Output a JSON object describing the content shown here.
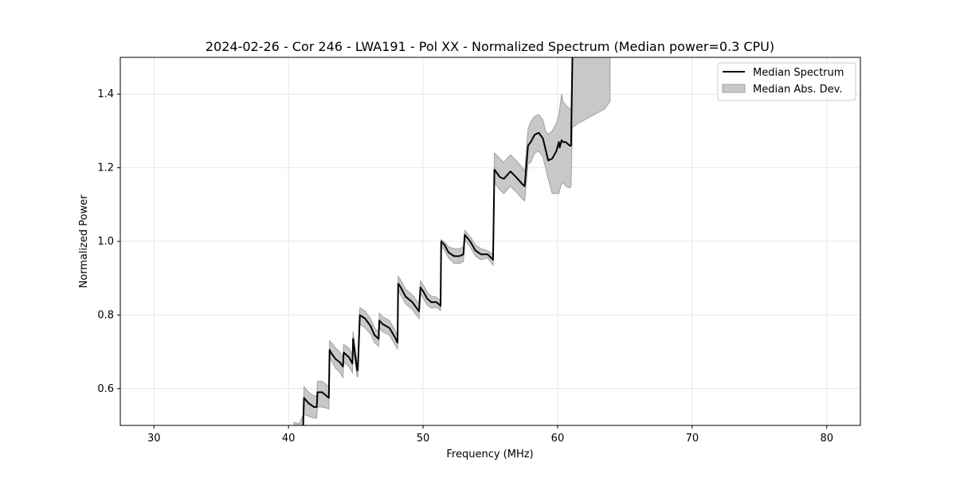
{
  "chart_data": {
    "type": "line",
    "title": "2024-02-26 - Cor 246 - LWA191 - Pol XX - Normalized Spectrum (Median power=0.3 CPU)",
    "xlabel": "Frequency (MHz)",
    "ylabel": "Normalized Power",
    "xlim": [
      27.5,
      82.5
    ],
    "ylim": [
      0.5,
      1.5
    ],
    "xticks": [
      30,
      40,
      50,
      60,
      70,
      80
    ],
    "yticks": [
      0.6,
      0.8,
      1.0,
      1.2,
      1.4
    ],
    "xtick_labels": [
      "30",
      "40",
      "50",
      "60",
      "70",
      "80"
    ],
    "ytick_labels": [
      "0.6",
      "0.8",
      "1.0",
      "1.2",
      "1.4"
    ],
    "grid": true,
    "legend_position": "top-right",
    "legend": [
      "Median Spectrum",
      "Median Abs. Dev."
    ],
    "colors": {
      "line": "#000000",
      "band": "#c8c8c8",
      "band_edge": "#a0a0a0",
      "grid": "#e6e6e6"
    },
    "series": [
      {
        "name": "Median Spectrum",
        "x": [
          41.1,
          41.15,
          41.5,
          41.9,
          42.1,
          42.15,
          42.5,
          43.0,
          43.05,
          43.2,
          43.5,
          43.8,
          44.05,
          44.1,
          44.5,
          44.75,
          44.8,
          45.1,
          45.15,
          45.3,
          45.7,
          46.1,
          46.4,
          46.7,
          46.75,
          47.0,
          47.5,
          47.9,
          48.1,
          48.15,
          48.3,
          48.7,
          49.2,
          49.7,
          49.8,
          50.0,
          50.3,
          50.6,
          51.0,
          51.3,
          51.35,
          51.6,
          51.9,
          52.3,
          52.7,
          53.0,
          53.1,
          53.5,
          53.9,
          54.3,
          54.8,
          55.2,
          55.3,
          55.7,
          56.0,
          56.5,
          56.9,
          57.4,
          57.55,
          57.8,
          58.0,
          58.3,
          58.6,
          58.9,
          59.1,
          59.3,
          59.6,
          59.9,
          60.1,
          60.15,
          60.3,
          60.4,
          60.6,
          60.9,
          61.0,
          61.1
        ],
        "y": [
          0.515,
          0.575,
          0.56,
          0.55,
          0.55,
          0.59,
          0.59,
          0.575,
          0.705,
          0.695,
          0.68,
          0.672,
          0.66,
          0.698,
          0.685,
          0.668,
          0.735,
          0.65,
          0.65,
          0.8,
          0.79,
          0.77,
          0.745,
          0.735,
          0.785,
          0.775,
          0.765,
          0.74,
          0.725,
          0.885,
          0.878,
          0.85,
          0.835,
          0.81,
          0.875,
          0.865,
          0.845,
          0.835,
          0.835,
          0.825,
          1.0,
          0.99,
          0.97,
          0.96,
          0.96,
          0.965,
          1.018,
          1.0,
          0.975,
          0.965,
          0.965,
          0.95,
          1.195,
          1.175,
          1.17,
          1.19,
          1.175,
          1.155,
          1.15,
          1.26,
          1.27,
          1.29,
          1.295,
          1.28,
          1.25,
          1.22,
          1.225,
          1.245,
          1.27,
          1.255,
          1.275,
          1.27,
          1.27,
          1.26,
          1.26,
          1.5
        ]
      },
      {
        "name": "Median Abs. Dev.",
        "x": [
          40.4,
          40.8,
          41.1,
          41.15,
          41.5,
          41.9,
          42.1,
          42.15,
          42.5,
          43.0,
          43.05,
          43.2,
          43.5,
          43.8,
          44.05,
          44.1,
          44.5,
          44.75,
          44.8,
          45.1,
          45.15,
          45.3,
          45.7,
          46.1,
          46.4,
          46.7,
          46.75,
          47.0,
          47.5,
          47.9,
          48.1,
          48.15,
          48.3,
          48.7,
          49.2,
          49.7,
          49.8,
          50.0,
          50.3,
          50.6,
          51.0,
          51.3,
          51.35,
          51.6,
          51.9,
          52.3,
          52.7,
          53.0,
          53.1,
          53.5,
          53.9,
          54.3,
          54.8,
          55.2,
          55.3,
          55.7,
          56.0,
          56.5,
          56.9,
          57.4,
          57.55,
          57.8,
          58.0,
          58.3,
          58.6,
          58.9,
          59.1,
          59.3,
          59.6,
          59.9,
          60.1,
          60.15,
          60.3,
          60.4,
          60.6,
          60.9,
          61.0,
          61.1,
          61.5,
          62.0,
          62.5,
          63.0,
          63.5,
          63.9
        ],
        "upper": [
          0.508,
          0.505,
          0.53,
          0.605,
          0.59,
          0.58,
          0.58,
          0.62,
          0.62,
          0.605,
          0.73,
          0.725,
          0.71,
          0.7,
          0.685,
          0.72,
          0.71,
          0.69,
          0.755,
          0.668,
          0.668,
          0.82,
          0.81,
          0.79,
          0.765,
          0.755,
          0.805,
          0.795,
          0.785,
          0.76,
          0.743,
          0.905,
          0.898,
          0.87,
          0.855,
          0.83,
          0.893,
          0.883,
          0.863,
          0.851,
          0.849,
          0.838,
          1.005,
          0.998,
          0.985,
          0.98,
          0.98,
          0.985,
          1.03,
          1.013,
          0.99,
          0.98,
          0.975,
          0.965,
          1.24,
          1.225,
          1.215,
          1.235,
          1.22,
          1.2,
          1.19,
          1.305,
          1.325,
          1.34,
          1.345,
          1.33,
          1.3,
          1.29,
          1.3,
          1.32,
          1.345,
          1.36,
          1.4,
          1.38,
          1.37,
          1.36,
          1.36,
          1.5,
          1.5,
          1.5,
          1.5,
          1.5,
          1.5,
          1.5
        ],
        "lower": [
          0.5,
          0.5,
          0.5,
          0.53,
          0.525,
          0.52,
          0.52,
          0.55,
          0.55,
          0.545,
          0.685,
          0.675,
          0.655,
          0.645,
          0.63,
          0.672,
          0.66,
          0.643,
          0.71,
          0.632,
          0.632,
          0.775,
          0.765,
          0.748,
          0.725,
          0.715,
          0.765,
          0.755,
          0.745,
          0.72,
          0.708,
          0.865,
          0.858,
          0.83,
          0.815,
          0.79,
          0.857,
          0.847,
          0.827,
          0.819,
          0.821,
          0.812,
          0.988,
          0.975,
          0.955,
          0.94,
          0.94,
          0.945,
          1.005,
          0.985,
          0.96,
          0.95,
          0.955,
          0.935,
          1.16,
          1.14,
          1.13,
          1.15,
          1.135,
          1.115,
          1.11,
          1.21,
          1.215,
          1.24,
          1.245,
          1.23,
          1.2,
          1.17,
          1.13,
          1.13,
          1.13,
          1.14,
          1.155,
          1.16,
          1.15,
          1.145,
          1.15,
          1.31,
          1.32,
          1.33,
          1.34,
          1.35,
          1.36,
          1.38
        ]
      }
    ]
  }
}
